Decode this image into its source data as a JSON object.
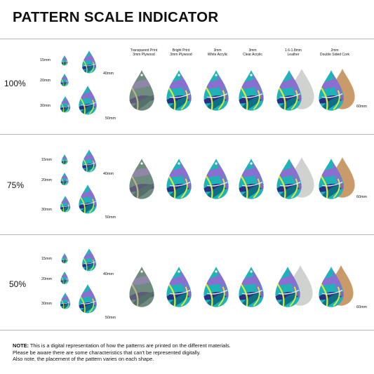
{
  "title": "PATTERN SCALE INDICATOR",
  "materials": [
    {
      "line1": "Transparent Print",
      "line2": "3mm Plywood"
    },
    {
      "line1": "Bright Print",
      "line2": "3mm Plywood"
    },
    {
      "line1": "3mm",
      "line2": "White Acrylic"
    },
    {
      "line1": "3mm",
      "line2": "Clear Acrylic"
    },
    {
      "line1": "1.6-1.8mm",
      "line2": "Leather"
    },
    {
      "line1": "2mm",
      "line2": "Double Sided Cork"
    }
  ],
  "sections": [
    {
      "scale": "100%",
      "sizes": [
        "15mm",
        "20mm",
        "30mm",
        "40mm",
        "50mm"
      ],
      "sample_size": "60mm"
    },
    {
      "scale": "75%",
      "sizes": [
        "15mm",
        "20mm",
        "30mm",
        "40mm",
        "50mm"
      ],
      "sample_size": "60mm"
    },
    {
      "scale": "50%",
      "sizes": [
        "15mm",
        "20mm",
        "30mm",
        "40mm",
        "50mm"
      ],
      "sample_size": "60mm"
    }
  ],
  "note": {
    "label": "NOTE:",
    "line1": "This is a digital representation of how the patterns are printed on the different materials.",
    "line2": "Please be aware there are some characteristics that can't be represented digitally.",
    "line3": "Also note, the placement of the pattern varies on each shape."
  },
  "colors": {
    "teal": "#1fb3b8",
    "deep_teal": "#0f6f85",
    "purple": "#8b6fd0",
    "navy": "#2a2f86",
    "lime": "#d8ec3c",
    "cork": "#c99a6a",
    "leather": "#cfd2cf",
    "muted": "#6f8a7e",
    "rule": "#b9b9b9"
  }
}
